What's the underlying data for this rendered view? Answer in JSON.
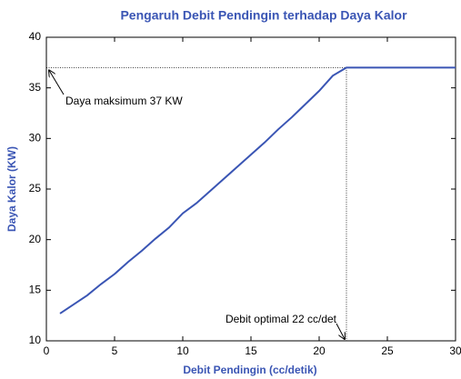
{
  "chart_data": {
    "type": "line",
    "title": "Pengaruh Debit Pendingin terhadap Daya Kalor",
    "x_label": "Debit Pendingin (cc/detik)",
    "y_label": "Daya Kalor (KW)",
    "x": [
      1,
      2,
      3,
      4,
      5,
      6,
      7,
      8,
      9,
      10,
      11,
      12,
      13,
      14,
      15,
      16,
      17,
      18,
      19,
      20,
      21,
      22,
      23,
      24,
      25,
      26,
      27,
      28,
      29,
      30
    ],
    "series": [
      {
        "name": "Daya Kalor",
        "color": "#3a55b4",
        "values": [
          12.7,
          13.6,
          14.5,
          15.6,
          16.6,
          17.8,
          18.9,
          20.1,
          21.2,
          22.6,
          23.6,
          24.8,
          26.0,
          27.2,
          28.4,
          29.6,
          30.9,
          32.1,
          33.4,
          34.7,
          36.2,
          37,
          37,
          37,
          37,
          37,
          37,
          37,
          37,
          37
        ]
      }
    ],
    "xlim": [
      0,
      30
    ],
    "xticks": [
      0,
      5,
      10,
      15,
      20,
      25,
      30
    ],
    "ylim": [
      10,
      40
    ],
    "yticks": [
      10,
      15,
      20,
      25,
      30,
      35,
      40
    ],
    "annotations": [
      {
        "text": "Daya maksimum 37 KW",
        "x": 0,
        "y": 37
      },
      {
        "text": "Debit optimal 22 cc/det",
        "x": 22,
        "y": 10
      }
    ],
    "reference_point": {
      "x": 22,
      "y": 37
    }
  }
}
